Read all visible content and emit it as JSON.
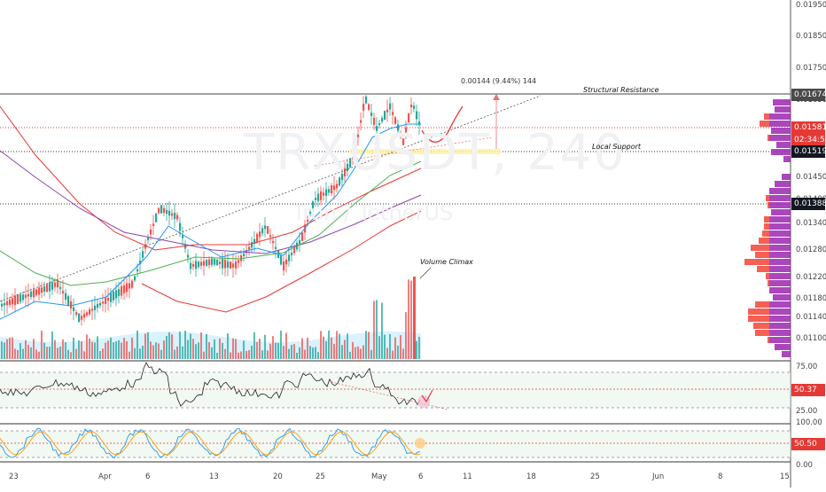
{
  "watermark": {
    "symbol": "TRXUSDT, 240",
    "exchange": "Tron / TetherUS"
  },
  "annotations": {
    "structural_resistance": "Structural Resistance",
    "local_support": "Local Support",
    "volume_climax": "Volume Climax",
    "measure": "0.00144 (9.44%) 144"
  },
  "price_axis": {
    "ticks": [
      "0.01950",
      "0.01850",
      "0.01750",
      "0.01650",
      "0.01450",
      "0.01400",
      "0.01340",
      "0.01280",
      "0.01220",
      "0.01180",
      "0.01140",
      "0.01100"
    ],
    "badges": [
      {
        "label": "0.01674",
        "color": "#4a4a4a"
      },
      {
        "label": "0.01581",
        "color": "#e53935"
      },
      {
        "label": "02:34:54",
        "color": "#e53935"
      },
      {
        "label": "0.01519",
        "color": "#131722"
      },
      {
        "label": "0.01388",
        "color": "#131722"
      }
    ]
  },
  "rsi_axis": {
    "ticks": [
      "75.00",
      "25.00"
    ],
    "badge": {
      "label": "50.37",
      "color": "#e53935"
    }
  },
  "stoch_axis": {
    "ticks": [
      "100.00",
      "0.00"
    ],
    "badge": {
      "label": "50.50",
      "color": "#e53935"
    }
  },
  "time_axis": {
    "labels": [
      "23",
      "Apr",
      "6",
      "13",
      "20",
      "25",
      "May",
      "6",
      "11",
      "18",
      "25",
      "Jun",
      "8",
      "15"
    ]
  },
  "colors": {
    "up": "#26a69a",
    "down": "#ef5350",
    "ema_blue": "#2196f3",
    "ema_green": "#4caf50",
    "ema_red": "#e53935",
    "ema_purple": "#8e44ad",
    "volume_profile": "#9c27b0"
  }
}
